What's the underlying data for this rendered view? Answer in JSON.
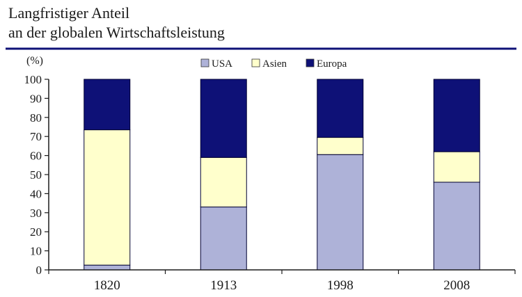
{
  "chart_data": {
    "type": "bar",
    "stacked": true,
    "title": "Langfristiger Anteil\nan der globalen Wirtschaftsleistung",
    "xlabel": "",
    "ylabel": "(%)",
    "categories": [
      "1820",
      "1913",
      "1998",
      "2008"
    ],
    "series": [
      {
        "name": "USA",
        "values": [
          2.5,
          33,
          60.5,
          46
        ],
        "color": "#aeb2d8"
      },
      {
        "name": "Asien",
        "values": [
          71,
          26,
          9,
          16
        ],
        "color": "#ffffcc"
      },
      {
        "name": "Europa",
        "values": [
          26.5,
          41,
          30.5,
          38
        ],
        "color": "#0e1177"
      }
    ],
    "ylim": [
      0,
      100
    ],
    "yticks": [
      0,
      10,
      20,
      30,
      40,
      50,
      60,
      70,
      80,
      90,
      100
    ],
    "grid": false,
    "legend": "top-center"
  },
  "colors": {
    "axis": "#1a1a1a",
    "title_rule": "#0e1177",
    "bar_outline": "#000033"
  }
}
